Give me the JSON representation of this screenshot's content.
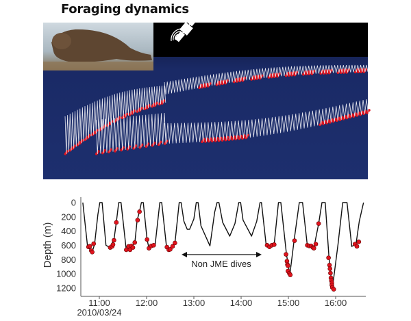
{
  "figure": {
    "title": "Foraging dynamics",
    "colors": {
      "ocean": "#1a2a66",
      "sky": "#000000",
      "dive_trace": "#e8e8f0",
      "jme_dot": "#e0141e",
      "profile_line": "#111111"
    }
  },
  "chart_data": {
    "type": "line",
    "title": "",
    "xlabel": "",
    "ylabel": "Depth (m)",
    "date_label": "2010/03/24",
    "x_ticks": [
      "11:00",
      "12:00",
      "13:00",
      "14:00",
      "15:00",
      "16:00"
    ],
    "x_tick_values": [
      11,
      12,
      13,
      14,
      15,
      16
    ],
    "y_ticks": [
      "0",
      "200",
      "400",
      "600",
      "800",
      "1000",
      "1200"
    ],
    "y_tick_values": [
      0,
      200,
      400,
      600,
      800,
      1000,
      1200
    ],
    "xlim": [
      10.55,
      16.6
    ],
    "ylim": [
      0,
      1300
    ],
    "y_inverted": true,
    "annotation": "Non JME dives",
    "annotation_span_hours": [
      12.75,
      14.42
    ],
    "series": [
      {
        "name": "dive profile",
        "points": [
          [
            10.65,
            0
          ],
          [
            10.75,
            614
          ],
          [
            10.85,
            694
          ],
          [
            10.9,
            582
          ],
          [
            10.97,
            166
          ],
          [
            11.01,
            0
          ],
          [
            11.06,
            0
          ],
          [
            11.14,
            598
          ],
          [
            11.22,
            630
          ],
          [
            11.31,
            518
          ],
          [
            11.36,
            278
          ],
          [
            11.41,
            0
          ],
          [
            11.46,
            0
          ],
          [
            11.57,
            662
          ],
          [
            11.68,
            614
          ],
          [
            11.75,
            566
          ],
          [
            11.8,
            246
          ],
          [
            11.85,
            128
          ],
          [
            11.89,
            0
          ],
          [
            11.93,
            0
          ],
          [
            12.01,
            518
          ],
          [
            12.05,
            640
          ],
          [
            12.14,
            598
          ],
          [
            12.18,
            598
          ],
          [
            12.28,
            0
          ],
          [
            12.32,
            0
          ],
          [
            12.42,
            614
          ],
          [
            12.5,
            662
          ],
          [
            12.6,
            566
          ],
          [
            12.69,
            0
          ],
          [
            12.73,
            0
          ],
          [
            12.79,
            262
          ],
          [
            12.86,
            374
          ],
          [
            12.91,
            374
          ],
          [
            13.0,
            230
          ],
          [
            13.05,
            0
          ],
          [
            13.09,
            0
          ],
          [
            13.15,
            326
          ],
          [
            13.34,
            608
          ],
          [
            13.44,
            134
          ],
          [
            13.49,
            0
          ],
          [
            13.53,
            0
          ],
          [
            13.61,
            278
          ],
          [
            13.76,
            470
          ],
          [
            13.87,
            294
          ],
          [
            13.95,
            0
          ],
          [
            13.99,
            0
          ],
          [
            14.04,
            246
          ],
          [
            14.22,
            470
          ],
          [
            14.33,
            262
          ],
          [
            14.4,
            0
          ],
          [
            14.43,
            0
          ],
          [
            14.53,
            598
          ],
          [
            14.6,
            614
          ],
          [
            14.7,
            582
          ],
          [
            14.79,
            0
          ],
          [
            14.84,
            0
          ],
          [
            14.96,
            726
          ],
          [
            15.03,
            1014
          ],
          [
            15.12,
            534
          ],
          [
            15.23,
            0
          ],
          [
            15.3,
            0
          ],
          [
            15.4,
            598
          ],
          [
            15.54,
            630
          ],
          [
            15.64,
            294
          ],
          [
            15.71,
            0
          ],
          [
            15.78,
            0
          ],
          [
            15.86,
            774
          ],
          [
            15.93,
            1206
          ],
          [
            16.05,
            582
          ],
          [
            16.15,
            0
          ],
          [
            16.24,
            0
          ],
          [
            16.34,
            614
          ],
          [
            16.43,
            582
          ],
          [
            16.5,
            262
          ],
          [
            16.59,
            0
          ]
        ]
      },
      {
        "name": "JME events",
        "points": [
          [
            10.77,
            621
          ],
          [
            10.8,
            611
          ],
          [
            10.83,
            672
          ],
          [
            10.85,
            694
          ],
          [
            10.88,
            576
          ],
          [
            11.23,
            630
          ],
          [
            11.27,
            614
          ],
          [
            11.29,
            589
          ],
          [
            11.31,
            528
          ],
          [
            11.36,
            278
          ],
          [
            11.57,
            662
          ],
          [
            11.62,
            614
          ],
          [
            11.65,
            662
          ],
          [
            11.68,
            608
          ],
          [
            11.71,
            630
          ],
          [
            11.75,
            560
          ],
          [
            11.81,
            246
          ],
          [
            11.85,
            128
          ],
          [
            12.01,
            518
          ],
          [
            12.05,
            640
          ],
          [
            12.1,
            608
          ],
          [
            12.15,
            598
          ],
          [
            12.43,
            624
          ],
          [
            12.47,
            662
          ],
          [
            12.5,
            656
          ],
          [
            12.55,
            614
          ],
          [
            12.6,
            566
          ],
          [
            14.55,
            598
          ],
          [
            14.6,
            621
          ],
          [
            14.65,
            598
          ],
          [
            14.7,
            589
          ],
          [
            14.95,
            726
          ],
          [
            14.97,
            822
          ],
          [
            14.98,
            870
          ],
          [
            14.99,
            886
          ],
          [
            14.99,
            960
          ],
          [
            15.02,
            992
          ],
          [
            15.04,
            1014
          ],
          [
            15.13,
            534
          ],
          [
            15.4,
            598
          ],
          [
            15.44,
            608
          ],
          [
            15.48,
            608
          ],
          [
            15.52,
            630
          ],
          [
            15.54,
            640
          ],
          [
            15.58,
            582
          ],
          [
            15.64,
            294
          ],
          [
            15.85,
            774
          ],
          [
            15.87,
            877
          ],
          [
            15.88,
            928
          ],
          [
            15.89,
            989
          ],
          [
            15.9,
            1056
          ],
          [
            15.91,
            1094
          ],
          [
            15.92,
            1126
          ],
          [
            15.92,
            1158
          ],
          [
            15.93,
            1190
          ],
          [
            15.96,
            1216
          ],
          [
            16.41,
            582
          ],
          [
            16.45,
            614
          ],
          [
            16.49,
            550
          ]
        ]
      }
    ]
  }
}
